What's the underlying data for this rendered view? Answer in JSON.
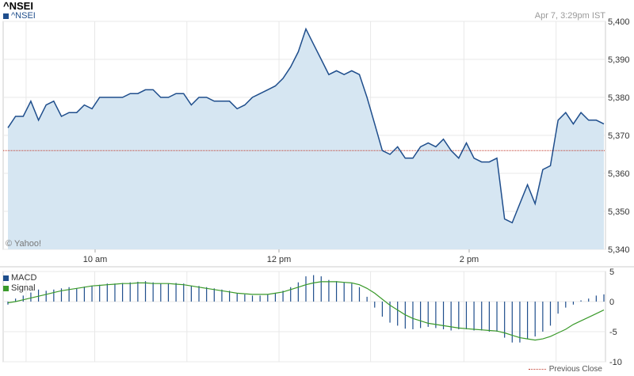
{
  "header": {
    "title": "^NSEI",
    "legend_label": "^NSEI",
    "timestamp": "Apr 7, 3:29pm IST",
    "copyright": "© Yahoo!"
  },
  "colors": {
    "price_line": "#1f4e8c",
    "price_fill": "#d6e6f2",
    "prev_close": "#c0392b",
    "macd_bars": "#1f4e8c",
    "signal_line": "#3a9a2a",
    "grid": "#e8e8e8"
  },
  "chart_data": [
    {
      "type": "area",
      "title": "^NSEI",
      "ylim": [
        5340,
        5400
      ],
      "yticks": [
        "5,340",
        "5,350",
        "5,360",
        "5,370",
        "5,380",
        "5,390",
        "5,400"
      ],
      "ytick_values": [
        5340,
        5350,
        5360,
        5370,
        5380,
        5390,
        5400
      ],
      "xticks": [
        "10 am",
        "12 pm",
        "2 pm"
      ],
      "previous_close": 5366,
      "series": [
        {
          "values": [
            5372,
            5375,
            5375,
            5379,
            5374,
            5378,
            5379,
            5375,
            5376,
            5376,
            5378,
            5377,
            5380,
            5380,
            5380,
            5380,
            5381,
            5381,
            5382,
            5382,
            5380,
            5380,
            5381,
            5381,
            5378,
            5380,
            5380,
            5379,
            5379,
            5379,
            5377,
            5378,
            5380,
            5381,
            5382,
            5383,
            5385,
            5388,
            5392,
            5398,
            5394,
            5390,
            5386,
            5387,
            5386,
            5387,
            5386,
            5380,
            5373,
            5366,
            5365,
            5367,
            5364,
            5364,
            5367,
            5368,
            5367,
            5369,
            5366,
            5364,
            5368,
            5364,
            5363,
            5363,
            5364,
            5348,
            5347,
            5352,
            5357,
            5352,
            5361,
            5362,
            5374,
            5376,
            5373,
            5376,
            5374,
            5374,
            5373
          ]
        }
      ]
    },
    {
      "type": "bar",
      "title": "MACD",
      "ylim": [
        -10,
        5
      ],
      "yticks": [
        "5",
        "0",
        "-5",
        "-10"
      ],
      "ytick_values": [
        5,
        0,
        -5,
        -10
      ],
      "series": [
        {
          "name": "MACD",
          "values": [
            -0.5,
            0.5,
            1.0,
            1.5,
            2.0,
            1.8,
            2.0,
            2.2,
            2.4,
            2.2,
            2.5,
            2.6,
            2.8,
            3.0,
            3.0,
            3.1,
            3.2,
            3.3,
            3.4,
            3.2,
            3.0,
            3.0,
            3.1,
            3.0,
            2.6,
            2.6,
            2.4,
            2.2,
            2.0,
            1.8,
            1.4,
            1.2,
            1.0,
            1.0,
            1.2,
            1.4,
            1.8,
            2.4,
            3.2,
            4.2,
            4.4,
            4.2,
            3.6,
            3.4,
            3.2,
            3.0,
            2.4,
            0.8,
            -1.0,
            -2.5,
            -3.5,
            -4.0,
            -4.5,
            -4.6,
            -4.4,
            -4.2,
            -4.4,
            -4.6,
            -4.8,
            -4.6,
            -4.6,
            -4.8,
            -4.8,
            -5.0,
            -5.0,
            -6.0,
            -6.8,
            -6.8,
            -6.2,
            -5.8,
            -5.0,
            -4.0,
            -2.0,
            -1.0,
            -0.5,
            0.2,
            0.5,
            1.0,
            1.2
          ]
        },
        {
          "name": "Signal",
          "values": [
            -0.2,
            0.0,
            0.3,
            0.6,
            0.9,
            1.2,
            1.5,
            1.8,
            2.0,
            2.2,
            2.4,
            2.6,
            2.7,
            2.8,
            2.9,
            3.0,
            3.0,
            3.1,
            3.1,
            3.0,
            3.0,
            3.0,
            2.9,
            2.8,
            2.6,
            2.4,
            2.2,
            2.0,
            1.8,
            1.6,
            1.4,
            1.3,
            1.2,
            1.2,
            1.2,
            1.4,
            1.6,
            2.0,
            2.4,
            2.8,
            3.1,
            3.3,
            3.3,
            3.3,
            3.2,
            3.1,
            2.8,
            2.2,
            1.4,
            0.4,
            -0.6,
            -1.4,
            -2.2,
            -2.8,
            -3.2,
            -3.6,
            -3.8,
            -4.0,
            -4.2,
            -4.4,
            -4.5,
            -4.6,
            -4.7,
            -4.8,
            -4.9,
            -5.2,
            -5.6,
            -6.0,
            -6.2,
            -6.4,
            -6.2,
            -5.8,
            -5.2,
            -4.6,
            -3.8,
            -3.2,
            -2.6,
            -2.0,
            -1.4
          ]
        }
      ]
    }
  ],
  "legend": {
    "previous_close": "Previous Close"
  }
}
